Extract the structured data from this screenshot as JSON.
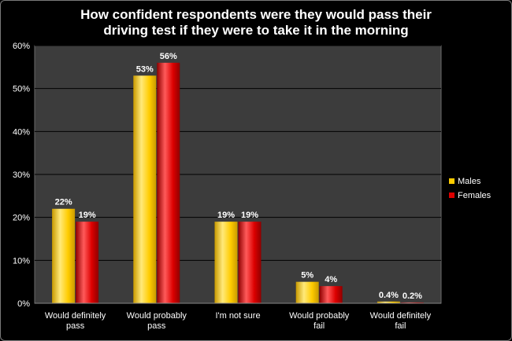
{
  "chart_data": {
    "type": "bar",
    "title_lines": [
      "How confident respondents were they would pass their",
      "driving test if they were to take it in the morning"
    ],
    "categories": [
      [
        "Would definitely",
        "pass"
      ],
      [
        "Would probably",
        "pass"
      ],
      [
        "I'm not sure"
      ],
      [
        "Would probably",
        "fail"
      ],
      [
        "Would definitely",
        "fail"
      ]
    ],
    "series": [
      {
        "name": "Males",
        "color": "#ffcc00",
        "values": [
          22,
          53,
          19,
          5,
          0.4
        ],
        "labels": [
          "22%",
          "53%",
          "19%",
          "5%",
          "0.4%"
        ]
      },
      {
        "name": "Females",
        "color": "#dd0000",
        "values": [
          19,
          56,
          19,
          4,
          0.2
        ],
        "labels": [
          "19%",
          "56%",
          "19%",
          "4%",
          "0.2%"
        ]
      }
    ],
    "ylim": [
      0,
      60
    ],
    "yticks": [
      0,
      10,
      20,
      30,
      40,
      50,
      60
    ],
    "ytick_labels": [
      "0%",
      "10%",
      "20%",
      "30%",
      "40%",
      "50%",
      "60%"
    ],
    "grid": true,
    "legend_position": "right",
    "plot_background": "#3c3c3c"
  }
}
